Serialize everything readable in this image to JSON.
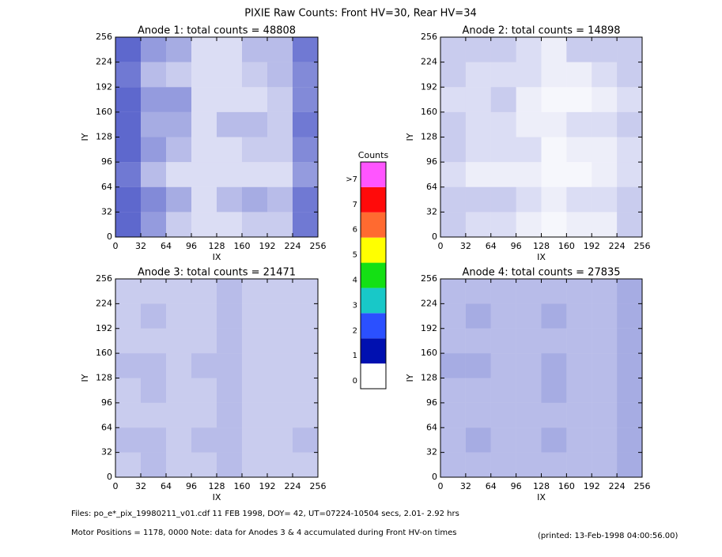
{
  "title": "PIXIE Raw Counts:  Front HV=30, Rear HV=34",
  "chart_data": [
    {
      "type": "heatmap",
      "title": "Anode 1: total counts = 48808",
      "xlabel": "IX",
      "ylabel": "IY",
      "xlim": [
        0,
        256
      ],
      "ylim": [
        0,
        256
      ],
      "xticks": [
        0,
        32,
        64,
        96,
        128,
        160,
        192,
        224,
        256
      ],
      "yticks": [
        0,
        32,
        64,
        96,
        128,
        160,
        192,
        224,
        256
      ],
      "z": [
        [
          0.9,
          0.6,
          0.3,
          0.2,
          0.2,
          0.3,
          0.3,
          0.8
        ],
        [
          0.9,
          0.7,
          0.5,
          0.2,
          0.4,
          0.5,
          0.4,
          0.8
        ],
        [
          0.8,
          0.4,
          0.2,
          0.2,
          0.2,
          0.2,
          0.2,
          0.6
        ],
        [
          0.9,
          0.6,
          0.4,
          0.2,
          0.2,
          0.3,
          0.3,
          0.7
        ],
        [
          0.9,
          0.5,
          0.5,
          0.2,
          0.4,
          0.4,
          0.3,
          0.8
        ],
        [
          0.9,
          0.6,
          0.6,
          0.2,
          0.2,
          0.2,
          0.3,
          0.7
        ],
        [
          0.8,
          0.4,
          0.3,
          0.2,
          0.2,
          0.3,
          0.4,
          0.7
        ],
        [
          0.9,
          0.6,
          0.5,
          0.2,
          0.2,
          0.4,
          0.4,
          0.8
        ]
      ]
    },
    {
      "type": "heatmap",
      "title": "Anode 2: total counts = 14898",
      "xlabel": "IX",
      "ylabel": "IY",
      "xlim": [
        0,
        256
      ],
      "ylim": [
        0,
        256
      ],
      "xticks": [
        0,
        32,
        64,
        96,
        128,
        160,
        192,
        224,
        256
      ],
      "yticks": [
        0,
        32,
        64,
        96,
        128,
        160,
        192,
        224,
        256
      ],
      "z": [
        [
          0.3,
          0.2,
          0.2,
          0.1,
          0.05,
          0.1,
          0.1,
          0.3
        ],
        [
          0.3,
          0.3,
          0.3,
          0.2,
          0.1,
          0.2,
          0.2,
          0.3
        ],
        [
          0.2,
          0.1,
          0.1,
          0.1,
          0.05,
          0.05,
          0.1,
          0.2
        ],
        [
          0.3,
          0.2,
          0.2,
          0.2,
          0.05,
          0.1,
          0.1,
          0.2
        ],
        [
          0.3,
          0.2,
          0.2,
          0.1,
          0.1,
          0.2,
          0.2,
          0.3
        ],
        [
          0.2,
          0.2,
          0.3,
          0.1,
          0.05,
          0.05,
          0.1,
          0.2
        ],
        [
          0.3,
          0.2,
          0.2,
          0.2,
          0.1,
          0.1,
          0.2,
          0.3
        ],
        [
          0.3,
          0.3,
          0.3,
          0.2,
          0.1,
          0.3,
          0.3,
          0.3
        ]
      ]
    },
    {
      "type": "heatmap",
      "title": "Anode 3: total counts = 21471",
      "xlabel": "IX",
      "ylabel": "IY",
      "xlim": [
        0,
        256
      ],
      "ylim": [
        0,
        256
      ],
      "xticks": [
        0,
        32,
        64,
        96,
        128,
        160,
        192,
        224,
        256
      ],
      "yticks": [
        0,
        32,
        64,
        96,
        128,
        160,
        192,
        224,
        256
      ],
      "z": [
        [
          0.3,
          0.4,
          0.3,
          0.3,
          0.4,
          0.3,
          0.3,
          0.3
        ],
        [
          0.4,
          0.4,
          0.3,
          0.4,
          0.4,
          0.3,
          0.3,
          0.4
        ],
        [
          0.3,
          0.3,
          0.3,
          0.3,
          0.4,
          0.3,
          0.3,
          0.3
        ],
        [
          0.3,
          0.4,
          0.3,
          0.3,
          0.4,
          0.3,
          0.3,
          0.3
        ],
        [
          0.4,
          0.4,
          0.3,
          0.4,
          0.4,
          0.3,
          0.3,
          0.3
        ],
        [
          0.3,
          0.3,
          0.3,
          0.3,
          0.4,
          0.3,
          0.3,
          0.3
        ],
        [
          0.3,
          0.4,
          0.3,
          0.3,
          0.4,
          0.3,
          0.3,
          0.3
        ],
        [
          0.3,
          0.3,
          0.3,
          0.3,
          0.4,
          0.3,
          0.3,
          0.3
        ]
      ]
    },
    {
      "type": "heatmap",
      "title": "Anode 4: total counts = 27835",
      "xlabel": "IX",
      "ylabel": "IY",
      "xlim": [
        0,
        256
      ],
      "ylim": [
        0,
        256
      ],
      "xticks": [
        0,
        32,
        64,
        96,
        128,
        160,
        192,
        224,
        256
      ],
      "yticks": [
        0,
        32,
        64,
        96,
        128,
        160,
        192,
        224,
        256
      ],
      "z": [
        [
          0.4,
          0.4,
          0.4,
          0.4,
          0.4,
          0.4,
          0.4,
          0.5
        ],
        [
          0.4,
          0.5,
          0.4,
          0.4,
          0.5,
          0.4,
          0.4,
          0.5
        ],
        [
          0.4,
          0.4,
          0.4,
          0.4,
          0.4,
          0.4,
          0.4,
          0.5
        ],
        [
          0.4,
          0.4,
          0.4,
          0.4,
          0.5,
          0.4,
          0.4,
          0.5
        ],
        [
          0.5,
          0.5,
          0.4,
          0.4,
          0.5,
          0.4,
          0.4,
          0.5
        ],
        [
          0.4,
          0.4,
          0.4,
          0.4,
          0.4,
          0.4,
          0.4,
          0.5
        ],
        [
          0.4,
          0.5,
          0.4,
          0.4,
          0.5,
          0.4,
          0.4,
          0.5
        ],
        [
          0.4,
          0.4,
          0.4,
          0.4,
          0.4,
          0.4,
          0.4,
          0.5
        ]
      ]
    }
  ],
  "colorbar": {
    "title": "Counts",
    "labels": [
      "0",
      "1",
      "2",
      "3",
      "4",
      "5",
      "6",
      "7",
      ">7"
    ],
    "colors": [
      "#ffffff",
      "#0010b0",
      "#2b50ff",
      "#18c8c8",
      "#14e014",
      "#ffff00",
      "#ff6a30",
      "#ff0a0a",
      "#ff55ff"
    ]
  },
  "footer": {
    "files": "Files: po_e*_pix_19980211_v01.cdf    11 FEB 1998, DOY= 42, UT=07224-10504 secs,  2.01- 2.92 hrs",
    "motor": "Motor Positions = 1178, 0000   Note: data for Anodes 3 & 4 accumulated during Front HV-on times",
    "printed": "(printed: 13-Feb-1998 04:00:56.00)"
  }
}
